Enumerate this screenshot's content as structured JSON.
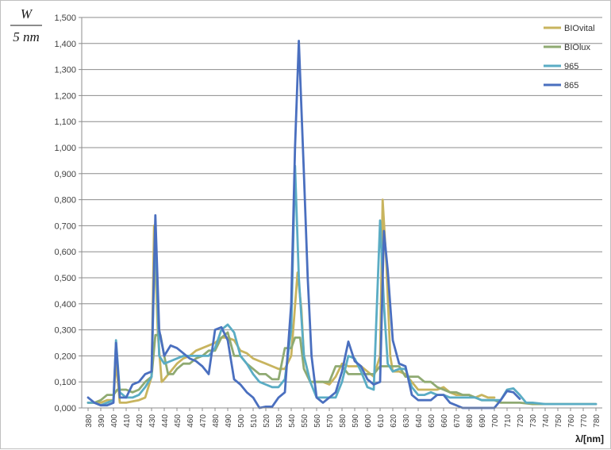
{
  "chart_data": {
    "type": "line",
    "ylabel_numerator": "W",
    "ylabel_denominator": "5 nm",
    "xlabel": "λ/[nm]",
    "ylim": [
      0,
      1.5
    ],
    "ytick_labels": [
      "0,000",
      "0,100",
      "0,200",
      "0,300",
      "0,400",
      "0,500",
      "0,600",
      "0,700",
      "0,800",
      "0,900",
      "1,000",
      "1,100",
      "1,200",
      "1,300",
      "1,400",
      "1,500"
    ],
    "xlim": [
      375,
      785
    ],
    "xtick_values": [
      380,
      390,
      400,
      410,
      420,
      430,
      440,
      450,
      460,
      470,
      480,
      490,
      500,
      510,
      520,
      530,
      540,
      550,
      560,
      570,
      580,
      590,
      600,
      610,
      620,
      630,
      640,
      650,
      660,
      670,
      680,
      690,
      700,
      710,
      720,
      730,
      740,
      750,
      760,
      770,
      780
    ],
    "grid": "horizontal",
    "legend_position": "top-right",
    "series": [
      {
        "name": "BIOvital",
        "color": "#c8b45e",
        "points": [
          [
            380,
            0.02
          ],
          [
            385,
            0.02
          ],
          [
            390,
            0.02
          ],
          [
            395,
            0.03
          ],
          [
            400,
            0.03
          ],
          [
            402,
            0.18
          ],
          [
            405,
            0.02
          ],
          [
            410,
            0.02
          ],
          [
            415,
            0.025
          ],
          [
            420,
            0.03
          ],
          [
            425,
            0.04
          ],
          [
            430,
            0.12
          ],
          [
            432,
            0.7
          ],
          [
            435,
            0.28
          ],
          [
            438,
            0.1
          ],
          [
            440,
            0.11
          ],
          [
            445,
            0.14
          ],
          [
            450,
            0.17
          ],
          [
            455,
            0.19
          ],
          [
            460,
            0.2
          ],
          [
            465,
            0.22
          ],
          [
            470,
            0.23
          ],
          [
            475,
            0.24
          ],
          [
            480,
            0.25
          ],
          [
            485,
            0.27
          ],
          [
            490,
            0.27
          ],
          [
            495,
            0.26
          ],
          [
            500,
            0.22
          ],
          [
            505,
            0.21
          ],
          [
            510,
            0.19
          ],
          [
            515,
            0.18
          ],
          [
            520,
            0.17
          ],
          [
            525,
            0.16
          ],
          [
            530,
            0.15
          ],
          [
            535,
            0.15
          ],
          [
            540,
            0.2
          ],
          [
            545,
            0.52
          ],
          [
            548,
            0.38
          ],
          [
            550,
            0.2
          ],
          [
            553,
            0.14
          ],
          [
            555,
            0.1
          ],
          [
            560,
            0.1
          ],
          [
            565,
            0.1
          ],
          [
            570,
            0.09
          ],
          [
            575,
            0.12
          ],
          [
            580,
            0.17
          ],
          [
            585,
            0.16
          ],
          [
            590,
            0.16
          ],
          [
            595,
            0.16
          ],
          [
            600,
            0.14
          ],
          [
            605,
            0.12
          ],
          [
            610,
            0.2
          ],
          [
            612,
            0.8
          ],
          [
            615,
            0.55
          ],
          [
            618,
            0.2
          ],
          [
            620,
            0.14
          ],
          [
            625,
            0.14
          ],
          [
            630,
            0.13
          ],
          [
            635,
            0.1
          ],
          [
            640,
            0.07
          ],
          [
            645,
            0.07
          ],
          [
            650,
            0.07
          ],
          [
            655,
            0.07
          ],
          [
            660,
            0.08
          ],
          [
            665,
            0.06
          ],
          [
            670,
            0.05
          ],
          [
            675,
            0.05
          ],
          [
            680,
            0.05
          ],
          [
            685,
            0.04
          ],
          [
            690,
            0.05
          ],
          [
            695,
            0.04
          ],
          [
            700,
            0.04
          ]
        ]
      },
      {
        "name": "BIOlux",
        "color": "#8faa72",
        "points": [
          [
            380,
            0.02
          ],
          [
            385,
            0.02
          ],
          [
            390,
            0.03
          ],
          [
            395,
            0.05
          ],
          [
            400,
            0.05
          ],
          [
            403,
            0.07
          ],
          [
            405,
            0.07
          ],
          [
            410,
            0.07
          ],
          [
            415,
            0.06
          ],
          [
            420,
            0.07
          ],
          [
            425,
            0.1
          ],
          [
            430,
            0.12
          ],
          [
            433,
            0.28
          ],
          [
            437,
            0.28
          ],
          [
            440,
            0.2
          ],
          [
            443,
            0.13
          ],
          [
            447,
            0.13
          ],
          [
            450,
            0.15
          ],
          [
            455,
            0.17
          ],
          [
            460,
            0.17
          ],
          [
            465,
            0.19
          ],
          [
            470,
            0.2
          ],
          [
            475,
            0.22
          ],
          [
            480,
            0.22
          ],
          [
            485,
            0.27
          ],
          [
            490,
            0.29
          ],
          [
            495,
            0.2
          ],
          [
            500,
            0.2
          ],
          [
            505,
            0.17
          ],
          [
            510,
            0.15
          ],
          [
            515,
            0.13
          ],
          [
            520,
            0.13
          ],
          [
            525,
            0.11
          ],
          [
            530,
            0.11
          ],
          [
            535,
            0.23
          ],
          [
            540,
            0.23
          ],
          [
            543,
            0.27
          ],
          [
            547,
            0.27
          ],
          [
            550,
            0.15
          ],
          [
            555,
            0.1
          ],
          [
            560,
            0.1
          ],
          [
            565,
            0.1
          ],
          [
            570,
            0.1
          ],
          [
            575,
            0.16
          ],
          [
            580,
            0.16
          ],
          [
            585,
            0.13
          ],
          [
            590,
            0.13
          ],
          [
            595,
            0.13
          ],
          [
            600,
            0.13
          ],
          [
            605,
            0.13
          ],
          [
            610,
            0.16
          ],
          [
            615,
            0.16
          ],
          [
            620,
            0.16
          ],
          [
            625,
            0.16
          ],
          [
            630,
            0.12
          ],
          [
            635,
            0.12
          ],
          [
            640,
            0.12
          ],
          [
            645,
            0.1
          ],
          [
            650,
            0.1
          ],
          [
            655,
            0.08
          ],
          [
            660,
            0.07
          ],
          [
            665,
            0.06
          ],
          [
            670,
            0.06
          ],
          [
            675,
            0.05
          ],
          [
            680,
            0.05
          ],
          [
            685,
            0.04
          ],
          [
            690,
            0.03
          ],
          [
            695,
            0.03
          ],
          [
            700,
            0.03
          ],
          [
            705,
            0.02
          ],
          [
            710,
            0.02
          ],
          [
            715,
            0.02
          ],
          [
            720,
            0.02
          ],
          [
            730,
            0.015
          ],
          [
            740,
            0.015
          ],
          [
            750,
            0.015
          ],
          [
            760,
            0.015
          ],
          [
            770,
            0.015
          ],
          [
            780,
            0.015
          ]
        ]
      },
      {
        "name": "965",
        "color": "#5aacc4",
        "points": [
          [
            380,
            0.02
          ],
          [
            385,
            0.02
          ],
          [
            390,
            0.01
          ],
          [
            395,
            0.02
          ],
          [
            400,
            0.03
          ],
          [
            402,
            0.26
          ],
          [
            405,
            0.06
          ],
          [
            410,
            0.04
          ],
          [
            415,
            0.04
          ],
          [
            420,
            0.05
          ],
          [
            425,
            0.08
          ],
          [
            430,
            0.12
          ],
          [
            433,
            0.7
          ],
          [
            436,
            0.2
          ],
          [
            440,
            0.17
          ],
          [
            445,
            0.18
          ],
          [
            450,
            0.19
          ],
          [
            455,
            0.2
          ],
          [
            460,
            0.2
          ],
          [
            465,
            0.2
          ],
          [
            470,
            0.2
          ],
          [
            475,
            0.2
          ],
          [
            480,
            0.23
          ],
          [
            485,
            0.3
          ],
          [
            490,
            0.32
          ],
          [
            495,
            0.29
          ],
          [
            500,
            0.2
          ],
          [
            505,
            0.17
          ],
          [
            510,
            0.13
          ],
          [
            515,
            0.1
          ],
          [
            520,
            0.09
          ],
          [
            525,
            0.08
          ],
          [
            530,
            0.08
          ],
          [
            535,
            0.11
          ],
          [
            540,
            0.3
          ],
          [
            543,
            0.93
          ],
          [
            546,
            0.5
          ],
          [
            550,
            0.2
          ],
          [
            555,
            0.1
          ],
          [
            560,
            0.04
          ],
          [
            565,
            0.04
          ],
          [
            570,
            0.04
          ],
          [
            575,
            0.04
          ],
          [
            580,
            0.1
          ],
          [
            585,
            0.2
          ],
          [
            590,
            0.19
          ],
          [
            595,
            0.14
          ],
          [
            600,
            0.08
          ],
          [
            605,
            0.07
          ],
          [
            610,
            0.72
          ],
          [
            613,
            0.4
          ],
          [
            616,
            0.17
          ],
          [
            620,
            0.14
          ],
          [
            625,
            0.15
          ],
          [
            630,
            0.15
          ],
          [
            635,
            0.08
          ],
          [
            640,
            0.05
          ],
          [
            645,
            0.05
          ],
          [
            650,
            0.06
          ],
          [
            655,
            0.05
          ],
          [
            660,
            0.05
          ],
          [
            665,
            0.04
          ],
          [
            670,
            0.04
          ],
          [
            675,
            0.04
          ],
          [
            680,
            0.04
          ],
          [
            685,
            0.04
          ],
          [
            690,
            0.03
          ],
          [
            695,
            0.03
          ],
          [
            700,
            0.03
          ],
          [
            705,
            0.03
          ],
          [
            710,
            0.07
          ],
          [
            715,
            0.075
          ],
          [
            720,
            0.05
          ],
          [
            725,
            0.02
          ],
          [
            730,
            0.02
          ],
          [
            740,
            0.015
          ],
          [
            750,
            0.015
          ],
          [
            760,
            0.015
          ],
          [
            770,
            0.015
          ],
          [
            780,
            0.015
          ]
        ]
      },
      {
        "name": "865",
        "color": "#4a6fbf",
        "points": [
          [
            380,
            0.04
          ],
          [
            385,
            0.02
          ],
          [
            390,
            0.01
          ],
          [
            395,
            0.01
          ],
          [
            400,
            0.02
          ],
          [
            402,
            0.25
          ],
          [
            405,
            0.04
          ],
          [
            410,
            0.04
          ],
          [
            415,
            0.09
          ],
          [
            420,
            0.1
          ],
          [
            425,
            0.13
          ],
          [
            430,
            0.14
          ],
          [
            433,
            0.74
          ],
          [
            436,
            0.3
          ],
          [
            440,
            0.2
          ],
          [
            445,
            0.24
          ],
          [
            450,
            0.23
          ],
          [
            455,
            0.21
          ],
          [
            460,
            0.19
          ],
          [
            465,
            0.18
          ],
          [
            470,
            0.16
          ],
          [
            475,
            0.13
          ],
          [
            480,
            0.3
          ],
          [
            485,
            0.31
          ],
          [
            490,
            0.26
          ],
          [
            495,
            0.11
          ],
          [
            500,
            0.09
          ],
          [
            505,
            0.06
          ],
          [
            510,
            0.04
          ],
          [
            515,
            0.0
          ],
          [
            520,
            0.005
          ],
          [
            525,
            0.005
          ],
          [
            530,
            0.04
          ],
          [
            535,
            0.06
          ],
          [
            540,
            0.4
          ],
          [
            543,
            1.0
          ],
          [
            546,
            1.41
          ],
          [
            550,
            0.9
          ],
          [
            553,
            0.5
          ],
          [
            556,
            0.2
          ],
          [
            560,
            0.04
          ],
          [
            565,
            0.02
          ],
          [
            570,
            0.04
          ],
          [
            575,
            0.06
          ],
          [
            580,
            0.14
          ],
          [
            585,
            0.255
          ],
          [
            590,
            0.18
          ],
          [
            595,
            0.16
          ],
          [
            600,
            0.11
          ],
          [
            605,
            0.09
          ],
          [
            610,
            0.1
          ],
          [
            613,
            0.68
          ],
          [
            616,
            0.53
          ],
          [
            620,
            0.26
          ],
          [
            625,
            0.17
          ],
          [
            630,
            0.16
          ],
          [
            635,
            0.05
          ],
          [
            640,
            0.03
          ],
          [
            645,
            0.03
          ],
          [
            650,
            0.03
          ],
          [
            655,
            0.05
          ],
          [
            660,
            0.05
          ],
          [
            665,
            0.02
          ],
          [
            670,
            0.01
          ],
          [
            675,
            0.0
          ],
          [
            680,
            0.0
          ],
          [
            685,
            0.0
          ],
          [
            690,
            0.0
          ],
          [
            695,
            0.0
          ],
          [
            700,
            0.0
          ],
          [
            705,
            0.03
          ],
          [
            710,
            0.065
          ],
          [
            715,
            0.06
          ],
          [
            720,
            0.035
          ]
        ]
      }
    ]
  }
}
